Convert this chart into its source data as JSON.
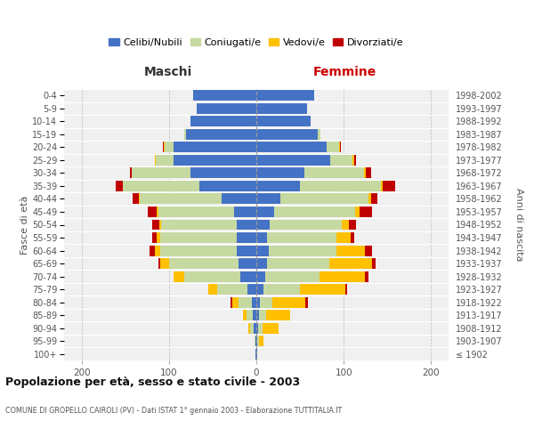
{
  "age_groups": [
    "100+",
    "95-99",
    "90-94",
    "85-89",
    "80-84",
    "75-79",
    "70-74",
    "65-69",
    "60-64",
    "55-59",
    "50-54",
    "45-49",
    "40-44",
    "35-39",
    "30-34",
    "25-29",
    "20-24",
    "15-19",
    "10-14",
    "5-9",
    "0-4"
  ],
  "birth_years": [
    "≤ 1902",
    "1903-1907",
    "1908-1912",
    "1913-1917",
    "1918-1922",
    "1923-1927",
    "1928-1932",
    "1933-1937",
    "1938-1942",
    "1943-1947",
    "1948-1952",
    "1953-1957",
    "1958-1962",
    "1963-1967",
    "1968-1972",
    "1973-1977",
    "1978-1982",
    "1983-1987",
    "1988-1992",
    "1993-1997",
    "1998-2002"
  ],
  "maschi": {
    "celibi": [
      1,
      1,
      3,
      4,
      5,
      10,
      18,
      20,
      22,
      22,
      22,
      25,
      40,
      65,
      75,
      95,
      95,
      80,
      75,
      68,
      72
    ],
    "coniugati": [
      0,
      1,
      4,
      7,
      15,
      35,
      65,
      80,
      88,
      88,
      87,
      87,
      93,
      88,
      68,
      20,
      10,
      2,
      0,
      0,
      0
    ],
    "vedovi": [
      0,
      0,
      2,
      4,
      8,
      10,
      12,
      10,
      6,
      4,
      2,
      2,
      1,
      0,
      0,
      1,
      1,
      0,
      0,
      0,
      0
    ],
    "divorziati": [
      0,
      0,
      0,
      0,
      2,
      0,
      0,
      2,
      6,
      5,
      8,
      10,
      8,
      8,
      2,
      0,
      1,
      0,
      0,
      0,
      0
    ]
  },
  "femmine": {
    "nubili": [
      1,
      1,
      2,
      3,
      4,
      8,
      10,
      12,
      14,
      12,
      15,
      20,
      28,
      50,
      55,
      85,
      80,
      70,
      62,
      58,
      66
    ],
    "coniugate": [
      0,
      2,
      5,
      8,
      14,
      42,
      62,
      72,
      78,
      80,
      83,
      93,
      100,
      93,
      68,
      25,
      15,
      3,
      0,
      0,
      0
    ],
    "vedove": [
      0,
      5,
      18,
      28,
      38,
      52,
      52,
      48,
      32,
      16,
      8,
      5,
      3,
      2,
      2,
      2,
      1,
      0,
      0,
      0,
      0
    ],
    "divorziate": [
      0,
      0,
      0,
      0,
      3,
      2,
      4,
      4,
      8,
      4,
      8,
      14,
      8,
      14,
      6,
      2,
      1,
      0,
      0,
      0,
      0
    ]
  },
  "colors": {
    "celibi": "#4472c4",
    "coniugati": "#c5d9a0",
    "vedovi": "#ffc000",
    "divorziati": "#c00000"
  },
  "xlim": 220,
  "title": "Popolazione per età, sesso e stato civile - 2003",
  "subtitle": "COMUNE DI GROPELLO CAIROLI (PV) - Dati ISTAT 1° gennaio 2003 - Elaborazione TUTTITALIA.IT",
  "ylabel": "Fasce di età",
  "y2label": "Anni di nascita",
  "legend_labels": [
    "Celibi/Nubili",
    "Coniugati/e",
    "Vedovi/e",
    "Divorziati/e"
  ],
  "maschi_label": "Maschi",
  "femmine_label": "Femmine",
  "bg_color": "#f0f0f0"
}
